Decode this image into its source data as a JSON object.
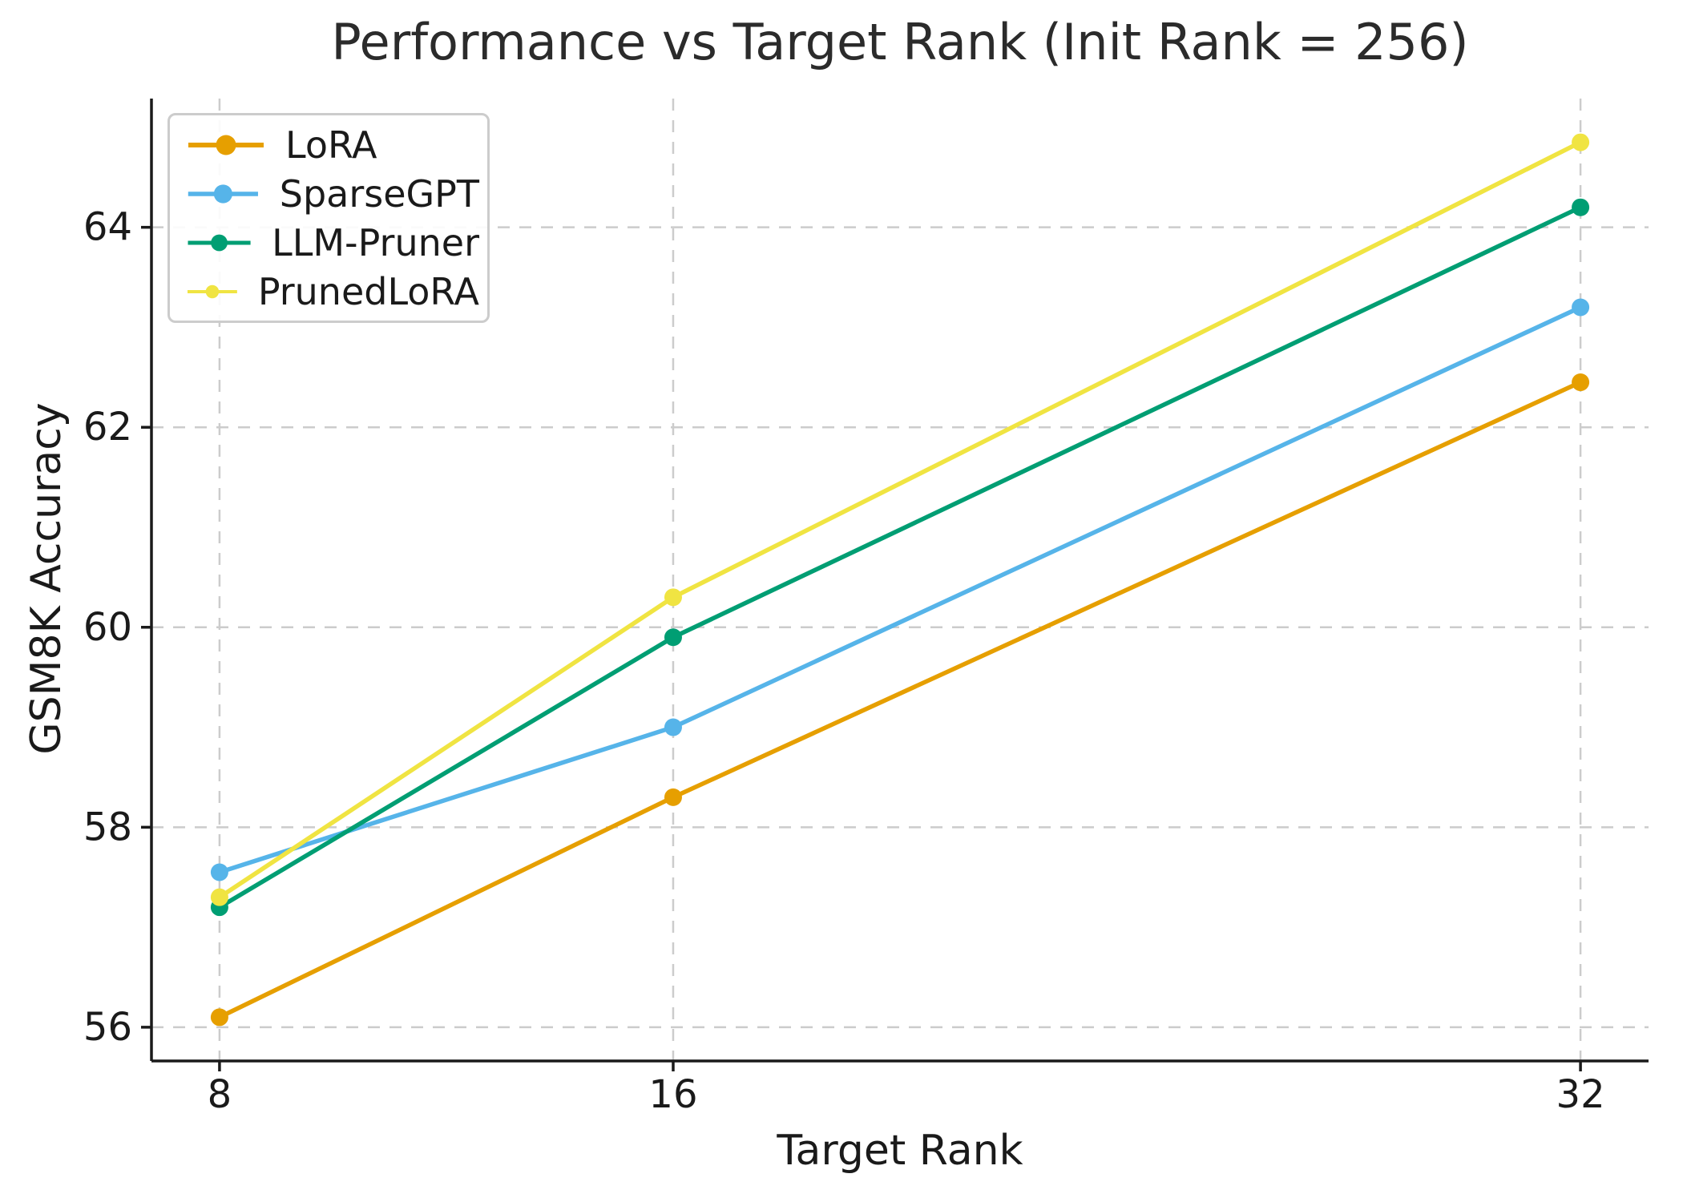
{
  "chart_data": {
    "type": "line",
    "title": "Performance vs Target Rank (Init Rank = 256)",
    "xlabel": "Target Rank",
    "ylabel": "GSM8K Accuracy",
    "x": [
      8,
      16,
      32
    ],
    "xtick_labels": [
      "8",
      "16",
      "32"
    ],
    "ytick_values": [
      56,
      58,
      60,
      62,
      64
    ],
    "xlim": [
      6.8,
      33.2
    ],
    "ylim": [
      55.6625,
      65.2875
    ],
    "grid": "dashed",
    "legend_position": "upper-left",
    "series": [
      {
        "name": "LoRA",
        "color": "#E69F00",
        "values": [
          56.1,
          58.3,
          62.45
        ]
      },
      {
        "name": "SparseGPT",
        "color": "#56B4E9",
        "values": [
          57.55,
          59.0,
          63.2
        ]
      },
      {
        "name": "LLM-Pruner",
        "color": "#009E73",
        "values": [
          57.2,
          59.9,
          64.2
        ]
      },
      {
        "name": "PrunedLoRA",
        "color": "#F0E442",
        "values": [
          57.3,
          60.3,
          64.85
        ]
      }
    ],
    "axis_color": "#1a1a1a",
    "grid_color": "#cccccc"
  }
}
